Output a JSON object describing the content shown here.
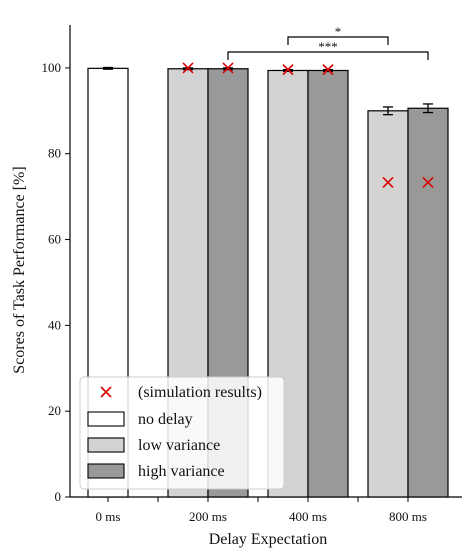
{
  "chart_data": {
    "type": "bar",
    "xlabel": "Delay Expectation",
    "ylabel": "Scores of Task Performance [%]",
    "ylim": [
      0,
      110
    ],
    "yticks": [
      0,
      20,
      40,
      60,
      80,
      100
    ],
    "categories": [
      "0 ms",
      "200 ms",
      "400 ms",
      "800 ms"
    ],
    "series": [
      {
        "name": "no delay",
        "color": "#ffffff",
        "values": [
          99.9,
          null,
          null,
          null
        ],
        "errors": [
          0.2,
          null,
          null,
          null
        ]
      },
      {
        "name": "low variance",
        "color": "#d3d3d3",
        "values": [
          null,
          99.8,
          99.4,
          90.0
        ],
        "errors": [
          null,
          0.2,
          0.2,
          0.9
        ]
      },
      {
        "name": "high variance",
        "color": "#999999",
        "values": [
          null,
          99.8,
          99.4,
          90.6
        ],
        "errors": [
          null,
          0.2,
          0.2,
          1.0
        ]
      }
    ],
    "simulation": {
      "name": "(simulation results)",
      "color": "#dd0000",
      "points": [
        {
          "category": "200 ms",
          "series": "low variance",
          "value": 100.0
        },
        {
          "category": "200 ms",
          "series": "high variance",
          "value": 100.0
        },
        {
          "category": "400 ms",
          "series": "low variance",
          "value": 99.6
        },
        {
          "category": "400 ms",
          "series": "high variance",
          "value": 99.6
        },
        {
          "category": "800 ms",
          "series": "low variance",
          "value": 73.3
        },
        {
          "category": "800 ms",
          "series": "high variance",
          "value": 73.3
        }
      ]
    },
    "significance": [
      {
        "label": "*",
        "from": {
          "category": "400 ms",
          "series": "low variance"
        },
        "to": {
          "category": "800 ms",
          "series": "low variance"
        }
      },
      {
        "label": "***",
        "from": {
          "category": "200 ms",
          "series": "high variance"
        },
        "to": {
          "category": "800 ms",
          "series": "high variance"
        }
      }
    ],
    "legend": {
      "position": "lower-left",
      "entries": [
        "(simulation results)",
        "no delay",
        "low variance",
        "high variance"
      ]
    },
    "grid": false
  }
}
